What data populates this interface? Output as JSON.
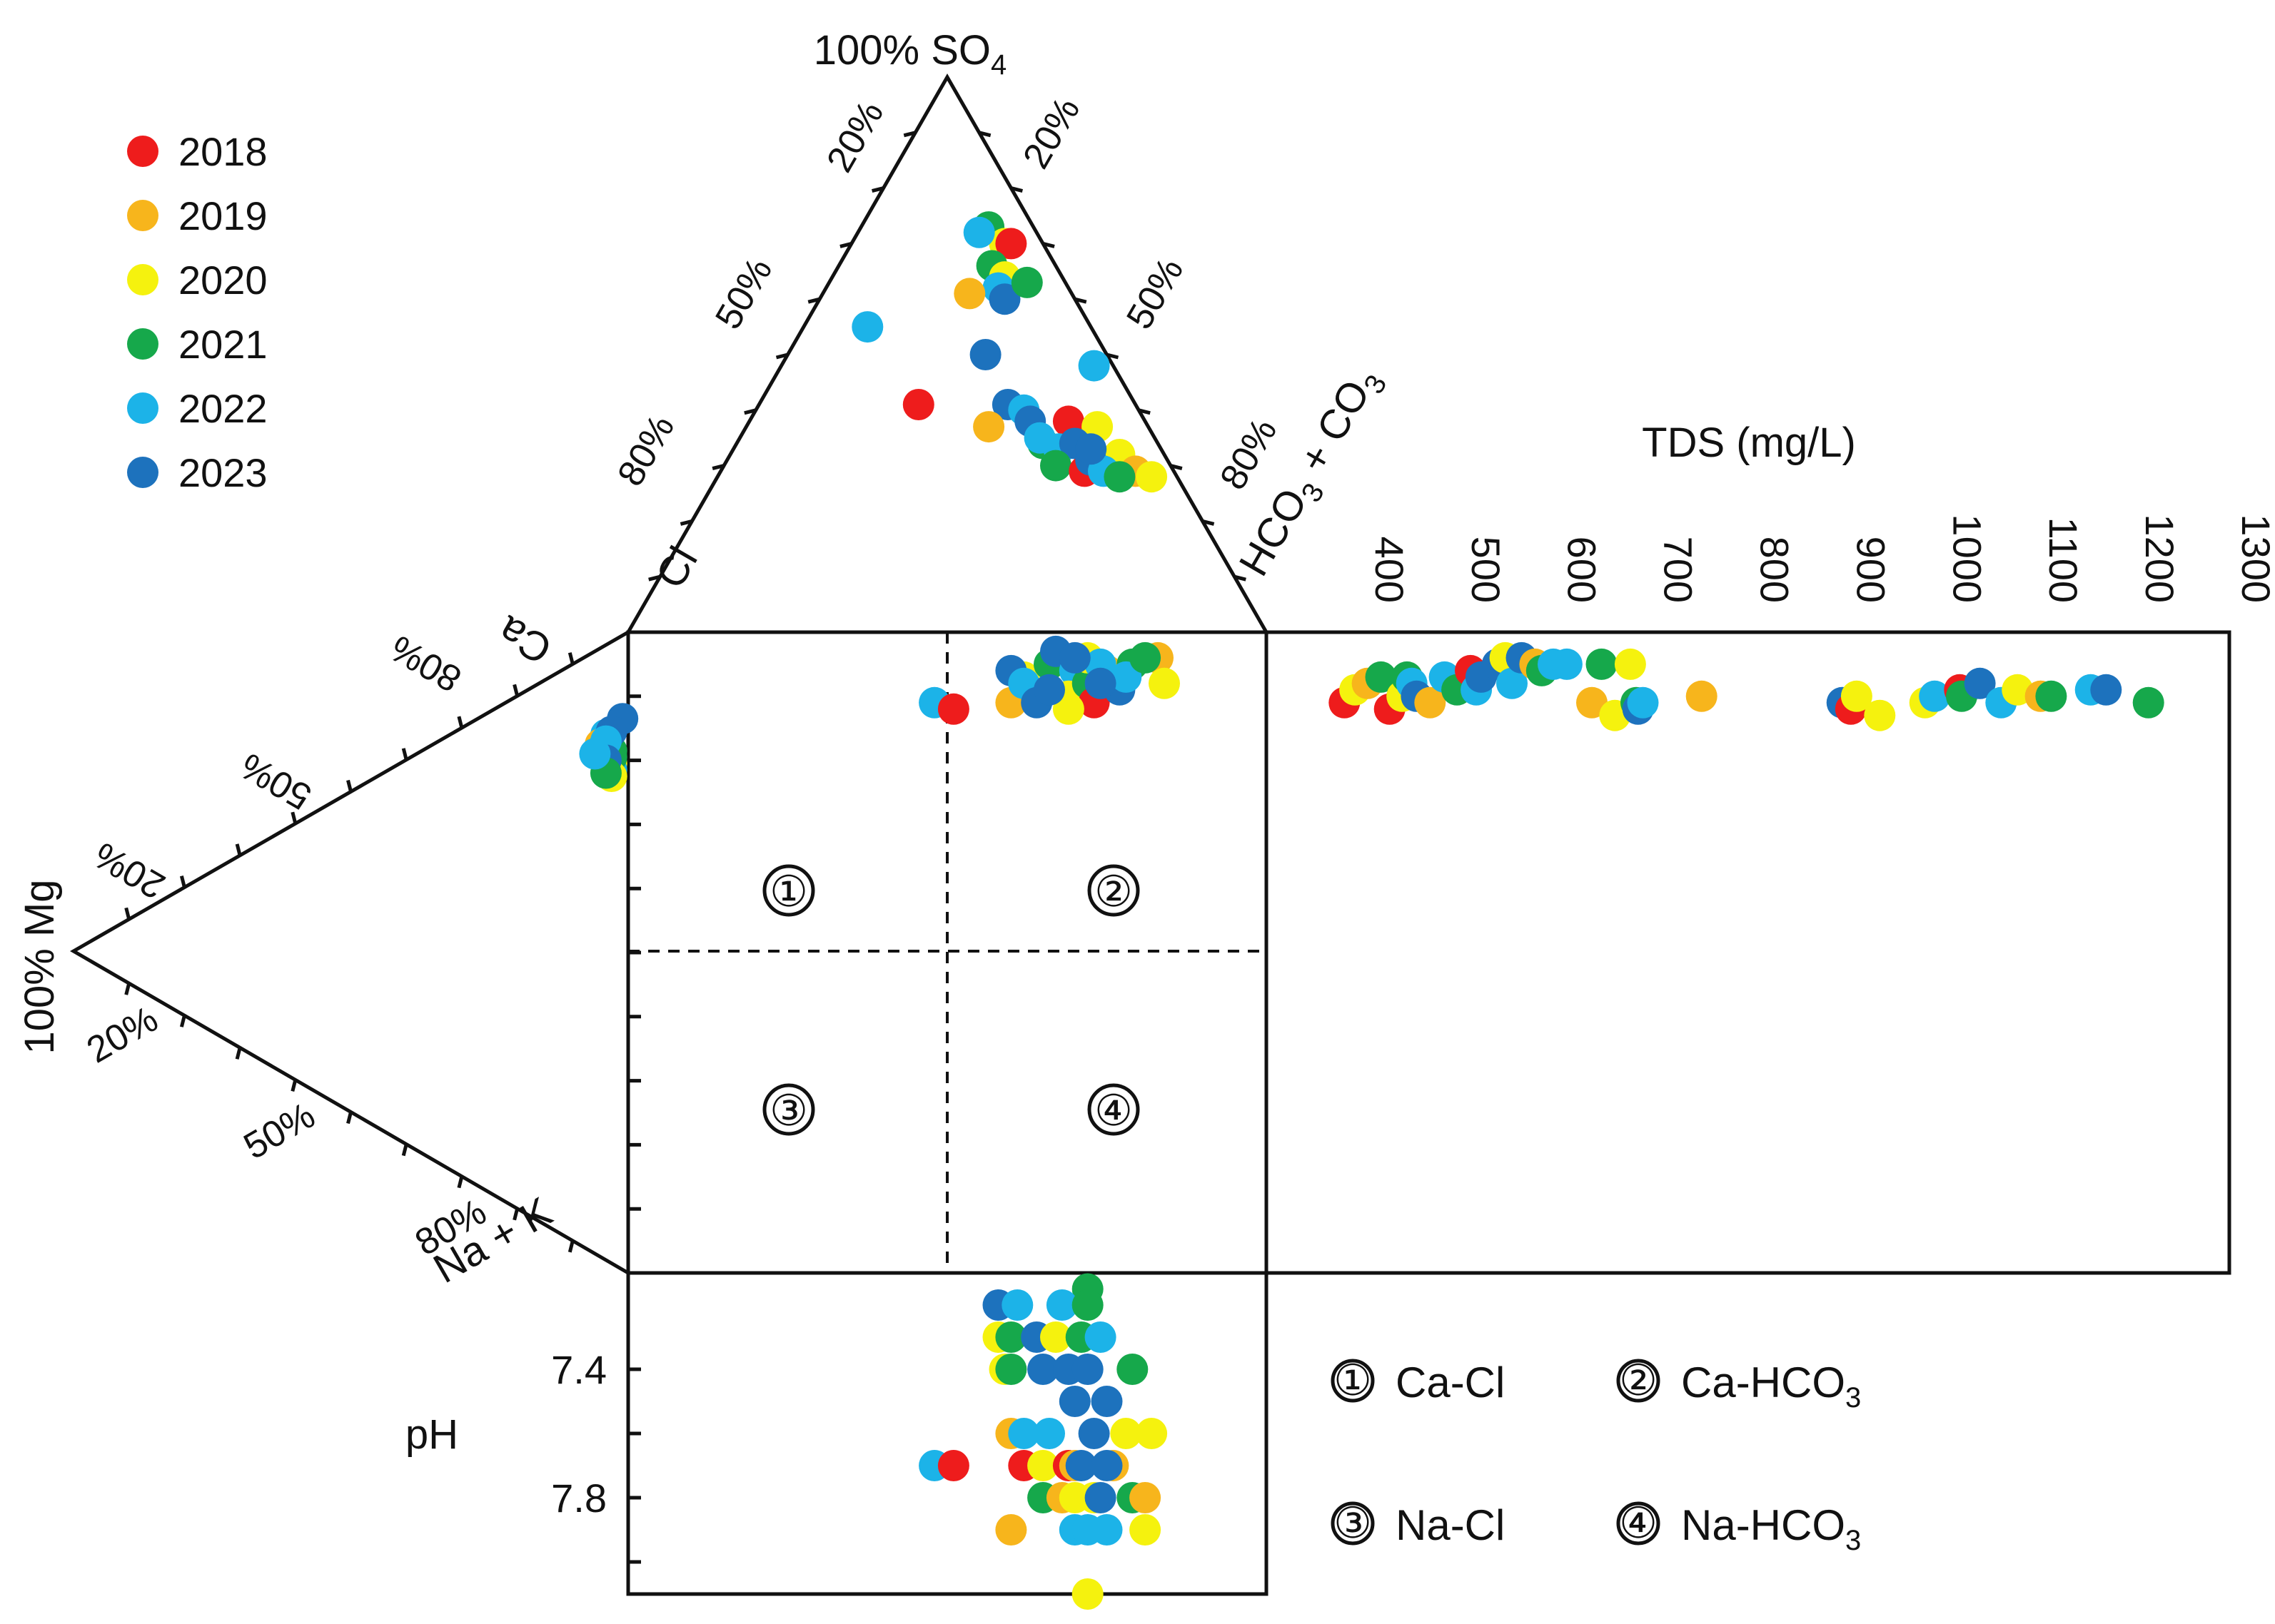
{
  "chart_data": {
    "type": "scatter",
    "title": "",
    "legend": {
      "placement": "top-left",
      "entries": [
        {
          "name": "2018",
          "color": "#ee1c1c"
        },
        {
          "name": "2019",
          "color": "#f7b51c"
        },
        {
          "name": "2020",
          "color": "#f5f20e"
        },
        {
          "name": "2021",
          "color": "#16a84b"
        },
        {
          "name": "2022",
          "color": "#1cb3e8"
        },
        {
          "name": "2023",
          "color": "#1d72bd"
        }
      ]
    },
    "anion_triangle": {
      "apex_label": "100% SO",
      "apex_sub": "4",
      "left_label": "Cl",
      "right_label": "HCO",
      "right_sub1": "3",
      "right_mid": " + CO",
      "right_sub2": "3",
      "left_ticks": [
        "20%",
        "50%",
        "80%"
      ],
      "right_ticks": [
        "20%",
        "50%",
        "80%"
      ],
      "points": [
        {
          "year": "2021",
          "so4": 73,
          "hco3": 20
        },
        {
          "year": "2020",
          "so4": 70,
          "hco3": 24
        },
        {
          "year": "2022",
          "so4": 72,
          "hco3": 19
        },
        {
          "year": "2018",
          "so4": 70,
          "hco3": 25
        },
        {
          "year": "2021",
          "so4": 66,
          "hco3": 24
        },
        {
          "year": "2020",
          "so4": 64,
          "hco3": 27
        },
        {
          "year": "2022",
          "so4": 62,
          "hco3": 27
        },
        {
          "year": "2023",
          "so4": 60,
          "hco3": 29
        },
        {
          "year": "2021",
          "so4": 63,
          "hco3": 31
        },
        {
          "year": "2019",
          "so4": 61,
          "hco3": 23
        },
        {
          "year": "2022",
          "so4": 55,
          "hco3": 10
        },
        {
          "year": "2023",
          "so4": 50,
          "hco3": 31
        },
        {
          "year": "2022",
          "so4": 48,
          "hco3": 49
        },
        {
          "year": "2018",
          "so4": 41,
          "hco3": 25
        },
        {
          "year": "2023",
          "so4": 41,
          "hco3": 39
        },
        {
          "year": "2019",
          "so4": 37,
          "hco3": 38
        },
        {
          "year": "2022",
          "so4": 40,
          "hco3": 42
        },
        {
          "year": "2023",
          "so4": 38,
          "hco3": 44
        },
        {
          "year": "2018",
          "so4": 38,
          "hco3": 50
        },
        {
          "year": "2020",
          "so4": 37,
          "hco3": 55
        },
        {
          "year": "2021",
          "so4": 34,
          "hco3": 48
        },
        {
          "year": "2022",
          "so4": 33,
          "hco3": 51
        },
        {
          "year": "2023",
          "so4": 34,
          "hco3": 53
        },
        {
          "year": "2021",
          "so4": 30,
          "hco3": 52
        },
        {
          "year": "2018",
          "so4": 29,
          "hco3": 57
        },
        {
          "year": "2020",
          "so4": 32,
          "hco3": 61
        },
        {
          "year": "2019",
          "so4": 29,
          "hco3": 65
        },
        {
          "year": "2023",
          "so4": 31,
          "hco3": 57
        },
        {
          "year": "2022",
          "so4": 29,
          "hco3": 60
        },
        {
          "year": "2021",
          "so4": 28,
          "hco3": 63
        },
        {
          "year": "2020",
          "so4": 28,
          "hco3": 68
        },
        {
          "year": "2023",
          "so4": 33,
          "hco3": 56
        },
        {
          "year": "2022",
          "so4": 35,
          "hco3": 47
        }
      ]
    },
    "cation_triangle": {
      "apex_label": "100% Mg",
      "top_label": "Ca",
      "bottom_label": "Na + K",
      "top_ticks": [
        "20%",
        "50%",
        "80%"
      ],
      "bottom_ticks": [
        "20%",
        "50%",
        "80%"
      ],
      "points": [
        {
          "year": "2023",
          "ca": 86,
          "na": 13
        },
        {
          "year": "2022",
          "ca": 82,
          "na": 14
        },
        {
          "year": "2021",
          "ca": 80,
          "na": 17
        },
        {
          "year": "2020",
          "ca": 78,
          "na": 19
        },
        {
          "year": "2019",
          "ca": 80,
          "na": 15
        },
        {
          "year": "2018",
          "ca": 79,
          "na": 16
        },
        {
          "year": "2023",
          "ca": 80,
          "na": 16
        },
        {
          "year": "2022",
          "ca": 77,
          "na": 20
        },
        {
          "year": "2021",
          "ca": 79,
          "na": 18
        },
        {
          "year": "2020",
          "ca": 76,
          "na": 21
        },
        {
          "year": "2023",
          "ca": 83,
          "na": 14
        },
        {
          "year": "2022",
          "ca": 81,
          "na": 15
        },
        {
          "year": "2023",
          "ca": 78,
          "na": 18
        },
        {
          "year": "2021",
          "ca": 76,
          "na": 20
        },
        {
          "year": "2022",
          "ca": 78,
          "na": 16
        }
      ]
    },
    "diamond": {
      "regions": [
        {
          "symbol": "①",
          "name": "Ca-Cl",
          "sub": ""
        },
        {
          "symbol": "②",
          "name": "Ca-HCO",
          "sub": "3"
        },
        {
          "symbol": "③",
          "name": "Na-Cl",
          "sub": ""
        },
        {
          "symbol": "④",
          "name": "Na-HCO",
          "sub": "3"
        }
      ],
      "points": [
        {
          "year": "2022",
          "x": 48,
          "y": 11
        },
        {
          "year": "2018",
          "x": 51,
          "y": 12
        },
        {
          "year": "2019",
          "x": 60,
          "y": 11
        },
        {
          "year": "2020",
          "x": 62,
          "y": 7
        },
        {
          "year": "2023",
          "x": 60,
          "y": 6
        },
        {
          "year": "2022",
          "x": 62,
          "y": 8
        },
        {
          "year": "2021",
          "x": 66,
          "y": 5
        },
        {
          "year": "2023",
          "x": 67,
          "y": 3
        },
        {
          "year": "2022",
          "x": 70,
          "y": 6
        },
        {
          "year": "2020",
          "x": 69,
          "y": 10
        },
        {
          "year": "2023",
          "x": 64,
          "y": 11
        },
        {
          "year": "2021",
          "x": 72,
          "y": 8
        },
        {
          "year": "2019",
          "x": 75,
          "y": 6
        },
        {
          "year": "2020",
          "x": 72,
          "y": 4
        },
        {
          "year": "2018",
          "x": 73,
          "y": 11
        },
        {
          "year": "2022",
          "x": 74,
          "y": 5
        },
        {
          "year": "2023",
          "x": 70,
          "y": 4
        },
        {
          "year": "2021",
          "x": 79,
          "y": 5
        },
        {
          "year": "2019",
          "x": 83,
          "y": 4
        },
        {
          "year": "2020",
          "x": 84,
          "y": 8
        },
        {
          "year": "2023",
          "x": 77,
          "y": 9
        },
        {
          "year": "2022",
          "x": 78,
          "y": 7
        },
        {
          "year": "2021",
          "x": 81,
          "y": 4
        },
        {
          "year": "2023",
          "x": 74,
          "y": 8
        },
        {
          "year": "2020",
          "x": 69,
          "y": 12
        },
        {
          "year": "2023",
          "x": 66,
          "y": 9
        }
      ]
    },
    "tds_panel": {
      "xlabel": "TDS (mg/L)",
      "xlim": [
        300,
        1300
      ],
      "x_ticks": [
        400,
        500,
        600,
        700,
        800,
        900,
        1000,
        1100,
        1200,
        1300
      ],
      "points": [
        {
          "year": "2018",
          "tds": 381,
          "y": 11
        },
        {
          "year": "2020",
          "tds": 392,
          "y": 9
        },
        {
          "year": "2019",
          "tds": 405,
          "y": 8
        },
        {
          "year": "2021",
          "tds": 419,
          "y": 7
        },
        {
          "year": "2018",
          "tds": 428,
          "y": 12
        },
        {
          "year": "2020",
          "tds": 441,
          "y": 10
        },
        {
          "year": "2021",
          "tds": 446,
          "y": 7
        },
        {
          "year": "2022",
          "tds": 451,
          "y": 8
        },
        {
          "year": "2023",
          "tds": 456,
          "y": 10
        },
        {
          "year": "2019",
          "tds": 470,
          "y": 11
        },
        {
          "year": "2022",
          "tds": 485,
          "y": 7
        },
        {
          "year": "2021",
          "tds": 498,
          "y": 9
        },
        {
          "year": "2018",
          "tds": 512,
          "y": 6
        },
        {
          "year": "2022",
          "tds": 518,
          "y": 9
        },
        {
          "year": "2023",
          "tds": 523,
          "y": 7
        },
        {
          "year": "2023",
          "tds": 540,
          "y": 5
        },
        {
          "year": "2020",
          "tds": 548,
          "y": 4
        },
        {
          "year": "2022",
          "tds": 555,
          "y": 8
        },
        {
          "year": "2023",
          "tds": 565,
          "y": 4
        },
        {
          "year": "2019",
          "tds": 579,
          "y": 5
        },
        {
          "year": "2021",
          "tds": 586,
          "y": 6
        },
        {
          "year": "2022",
          "tds": 598,
          "y": 5
        },
        {
          "year": "2022",
          "tds": 612,
          "y": 5
        },
        {
          "year": "2019",
          "tds": 638,
          "y": 11
        },
        {
          "year": "2021",
          "tds": 648,
          "y": 5
        },
        {
          "year": "2020",
          "tds": 662,
          "y": 13
        },
        {
          "year": "2020",
          "tds": 678,
          "y": 5
        },
        {
          "year": "2021",
          "tds": 684,
          "y": 11
        },
        {
          "year": "2023",
          "tds": 686,
          "y": 12
        },
        {
          "year": "2022",
          "tds": 691,
          "y": 11
        },
        {
          "year": "2019",
          "tds": 752,
          "y": 10
        },
        {
          "year": "2023",
          "tds": 898,
          "y": 11
        },
        {
          "year": "2018",
          "tds": 907,
          "y": 12
        },
        {
          "year": "2020",
          "tds": 913,
          "y": 10
        },
        {
          "year": "2020",
          "tds": 937,
          "y": 13
        },
        {
          "year": "2020",
          "tds": 984,
          "y": 11
        },
        {
          "year": "2022",
          "tds": 994,
          "y": 10
        },
        {
          "year": "2018",
          "tds": 1020,
          "y": 9
        },
        {
          "year": "2021",
          "tds": 1022,
          "y": 10
        },
        {
          "year": "2023",
          "tds": 1041,
          "y": 8
        },
        {
          "year": "2022",
          "tds": 1063,
          "y": 11
        },
        {
          "year": "2020",
          "tds": 1080,
          "y": 9
        },
        {
          "year": "2019",
          "tds": 1104,
          "y": 10
        },
        {
          "year": "2021",
          "tds": 1115,
          "y": 10
        },
        {
          "year": "2022",
          "tds": 1156,
          "y": 9
        },
        {
          "year": "2023",
          "tds": 1172,
          "y": 9
        },
        {
          "year": "2021",
          "tds": 1216,
          "y": 11
        }
      ]
    },
    "ph_panel": {
      "ylabel": "pH",
      "ylim": [
        7.1,
        8.1
      ],
      "y_ticks": [
        7.4,
        7.8
      ],
      "points": [
        {
          "year": "2021",
          "x": 72,
          "ph": 7.15
        },
        {
          "year": "2023",
          "x": 58,
          "ph": 7.2
        },
        {
          "year": "2022",
          "x": 61,
          "ph": 7.2
        },
        {
          "year": "2022",
          "x": 68,
          "ph": 7.2
        },
        {
          "year": "2021",
          "x": 72,
          "ph": 7.2
        },
        {
          "year": "2020",
          "x": 58,
          "ph": 7.3
        },
        {
          "year": "2021",
          "x": 60,
          "ph": 7.3
        },
        {
          "year": "2023",
          "x": 64,
          "ph": 7.3
        },
        {
          "year": "2020",
          "x": 67,
          "ph": 7.3
        },
        {
          "year": "2021",
          "x": 71,
          "ph": 7.3
        },
        {
          "year": "2022",
          "x": 74,
          "ph": 7.3
        },
        {
          "year": "2020",
          "x": 59,
          "ph": 7.4
        },
        {
          "year": "2021",
          "x": 60,
          "ph": 7.4
        },
        {
          "year": "2023",
          "x": 65,
          "ph": 7.4
        },
        {
          "year": "2023",
          "x": 69,
          "ph": 7.4
        },
        {
          "year": "2023",
          "x": 72,
          "ph": 7.4
        },
        {
          "year": "2021",
          "x": 79,
          "ph": 7.4
        },
        {
          "year": "2023",
          "x": 70,
          "ph": 7.5
        },
        {
          "year": "2023",
          "x": 75,
          "ph": 7.5
        },
        {
          "year": "2019",
          "x": 60,
          "ph": 7.6
        },
        {
          "year": "2022",
          "x": 62,
          "ph": 7.6
        },
        {
          "year": "2022",
          "x": 66,
          "ph": 7.6
        },
        {
          "year": "2023",
          "x": 73,
          "ph": 7.6
        },
        {
          "year": "2020",
          "x": 78,
          "ph": 7.6
        },
        {
          "year": "2020",
          "x": 82,
          "ph": 7.6
        },
        {
          "year": "2022",
          "x": 48,
          "ph": 7.7
        },
        {
          "year": "2018",
          "x": 51,
          "ph": 7.7
        },
        {
          "year": "2018",
          "x": 62,
          "ph": 7.7
        },
        {
          "year": "2020",
          "x": 65,
          "ph": 7.7
        },
        {
          "year": "2018",
          "x": 69,
          "ph": 7.7
        },
        {
          "year": "2019",
          "x": 70,
          "ph": 7.7
        },
        {
          "year": "2023",
          "x": 71,
          "ph": 7.7
        },
        {
          "year": "2019",
          "x": 76,
          "ph": 7.7
        },
        {
          "year": "2023",
          "x": 75,
          "ph": 7.7
        },
        {
          "year": "2021",
          "x": 65,
          "ph": 7.8
        },
        {
          "year": "2019",
          "x": 68,
          "ph": 7.8
        },
        {
          "year": "2020",
          "x": 70,
          "ph": 7.8
        },
        {
          "year": "2020",
          "x": 73,
          "ph": 7.8
        },
        {
          "year": "2023",
          "x": 74,
          "ph": 7.8
        },
        {
          "year": "2021",
          "x": 79,
          "ph": 7.8
        },
        {
          "year": "2019",
          "x": 81,
          "ph": 7.8
        },
        {
          "year": "2019",
          "x": 60,
          "ph": 7.9
        },
        {
          "year": "2022",
          "x": 70,
          "ph": 7.9
        },
        {
          "year": "2022",
          "x": 72,
          "ph": 7.9
        },
        {
          "year": "2022",
          "x": 75,
          "ph": 7.9
        },
        {
          "year": "2020",
          "x": 81,
          "ph": 7.9
        },
        {
          "year": "2020",
          "x": 72,
          "ph": 8.1
        }
      ]
    }
  }
}
